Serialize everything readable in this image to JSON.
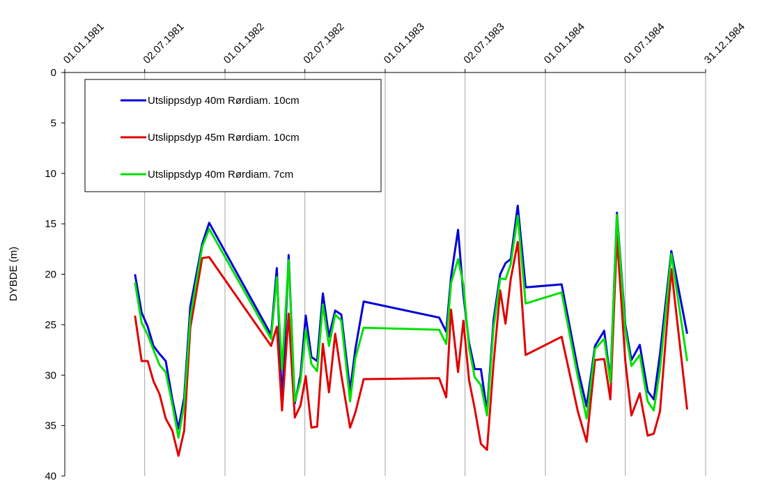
{
  "chart_data": {
    "type": "line",
    "y_label": "DYBDE (m)",
    "x": [
      "10.06.1981",
      "25.06.1981",
      "09.07.1981",
      "22.07.1981",
      "05.08.1981",
      "19.08.1981",
      "03.09.1981",
      "17.09.1981",
      "30.09.1981",
      "14.10.1981",
      "10.11.1981",
      "26.11.1981",
      "16.04.1982",
      "29.04.1982",
      "11.05.1982",
      "26.05.1982",
      "09.06.1982",
      "22.06.1982",
      "04.07.1982",
      "17.07.1982",
      "30.07.1982",
      "12.08.1982",
      "26.08.1982",
      "09.09.1982",
      "23.09.1982",
      "13.10.1982",
      "25.10.1982",
      "13.11.1982",
      "04.05.1983",
      "20.05.1983",
      "31.05.1983",
      "16.06.1983",
      "28.06.1983",
      "11.07.1983",
      "24.07.1983",
      "07.08.1983",
      "21.08.1983",
      "05.09.1983",
      "20.09.1983",
      "02.10.1983",
      "14.10.1983",
      "30.10.1983",
      "17.11.1983",
      "07.02.1984",
      "15.03.1984",
      "04.04.1984",
      "23.04.1984",
      "14.05.1984",
      "28.05.1984",
      "12.06.1984",
      "01.07.1984",
      "15.07.1984",
      "03.08.1984",
      "21.08.1984",
      "04.09.1984",
      "18.09.1984",
      "14.10.1984",
      "19.11.1984"
    ],
    "series": [
      {
        "name": "Utslippsdyp 40m Rørdiam. 10cm",
        "color": "#0000d8",
        "values": [
          20.0,
          23.8,
          25.2,
          27.1,
          27.9,
          28.6,
          32.4,
          35.3,
          32.2,
          23.2,
          17.0,
          14.9,
          26.0,
          19.4,
          32.9,
          18.1,
          32.8,
          30.0,
          24.1,
          28.2,
          28.6,
          21.9,
          26.2,
          23.6,
          24.0,
          31.5,
          27.4,
          22.7,
          24.3,
          25.7,
          20.3,
          15.6,
          22.0,
          26.8,
          29.4,
          29.4,
          33.6,
          24.5,
          20.0,
          18.9,
          18.5,
          13.2,
          21.3,
          21.0,
          29.4,
          33.1,
          27.1,
          25.6,
          30.5,
          13.9,
          25.0,
          28.5,
          27.0,
          31.6,
          32.4,
          27.9,
          17.7,
          25.9
        ]
      },
      {
        "name": "Utslippsdyp 45m Rørdiam. 10cm",
        "color": "#e00000",
        "values": [
          24.1,
          28.6,
          28.6,
          30.6,
          31.9,
          34.3,
          35.5,
          38.0,
          35.5,
          25.3,
          18.4,
          18.3,
          27.1,
          25.2,
          33.5,
          23.9,
          34.2,
          33.0,
          30.1,
          35.2,
          35.1,
          26.9,
          31.7,
          25.9,
          30.0,
          35.2,
          33.7,
          30.4,
          30.3,
          32.2,
          23.5,
          29.7,
          24.6,
          30.5,
          33.3,
          36.8,
          37.4,
          28.8,
          21.6,
          24.9,
          20.5,
          16.8,
          28.0,
          26.2,
          33.6,
          36.6,
          28.5,
          28.4,
          32.4,
          16.2,
          28.6,
          34.0,
          31.8,
          36.0,
          35.8,
          33.6,
          19.5,
          33.4
        ]
      },
      {
        "name": "Utslippsdyp 40m Rørdiam. 7cm",
        "color": "#00e000",
        "values": [
          20.8,
          24.8,
          26.0,
          27.5,
          29.0,
          29.7,
          32.9,
          36.2,
          32.9,
          24.3,
          17.3,
          15.5,
          26.4,
          20.3,
          29.4,
          18.6,
          32.6,
          30.6,
          25.5,
          28.9,
          29.6,
          23.0,
          27.1,
          24.0,
          24.6,
          32.6,
          28.3,
          25.3,
          25.5,
          26.9,
          20.9,
          18.5,
          21.0,
          27.3,
          30.2,
          31.0,
          34.0,
          25.3,
          20.4,
          20.5,
          19.0,
          14.2,
          22.9,
          21.8,
          30.2,
          34.3,
          27.4,
          26.4,
          30.7,
          14.1,
          25.5,
          29.1,
          28.0,
          32.6,
          33.5,
          29.5,
          18.0,
          28.6
        ]
      }
    ],
    "xlim": [
      "01.01.1981",
      "31.12.1984"
    ],
    "xticks": [
      "01.01.1981",
      "02.07.1981",
      "01.01.1982",
      "02.07.1982",
      "01.01.1983",
      "02.07.1983",
      "01.01.1984",
      "01.07.1984",
      "31.12.1984"
    ],
    "ylim": [
      0,
      40
    ],
    "yticks": [
      0,
      5,
      10,
      15,
      20,
      25,
      30,
      35,
      40
    ],
    "y_inverted": true,
    "x_axis_position": "top",
    "grid": "x",
    "legend": "upper left"
  }
}
